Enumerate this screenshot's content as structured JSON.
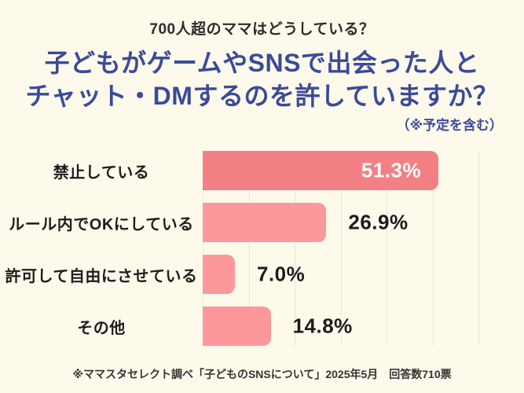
{
  "header": {
    "eyebrow": "700人超のママはどうしている？",
    "title_line1": "子どもがゲームやSNSで出会った人と",
    "title_line2": "チャット・DMするのを許していますか？",
    "note": "（※予定を含む）"
  },
  "chart_data": {
    "type": "bar",
    "orientation": "horizontal",
    "title": "子どもがゲームやSNSで出会った人とチャット・DMするのを許していますか？（※予定を含む）",
    "categories": [
      "禁止している",
      "ルール内でOKにしている",
      "許可して自由にさせている",
      "その他"
    ],
    "values": [
      51.3,
      26.9,
      7.0,
      14.8
    ],
    "labels": [
      "51.3%",
      "26.9%",
      "7.0%",
      "14.8%"
    ],
    "xlim": [
      0,
      60
    ],
    "gridline_step": 10,
    "grid": true,
    "legend": false,
    "bar_colors": [
      "#f38084",
      "#fc989c",
      "#fc989c",
      "#fc989c"
    ],
    "value_label_positions": [
      "inside",
      "outside",
      "outside",
      "outside"
    ]
  },
  "footer": {
    "source": "※ママスタセレクト調べ「子どものSNSについて」2025年5月　回答数710票"
  },
  "colors": {
    "background": "#fdfaec",
    "title_blue": "#3b4a99",
    "bar_primary": "#f38084",
    "bar_secondary": "#fc989c",
    "gridline": "#ebe8d8",
    "text_dark": "#1c1c1c"
  }
}
